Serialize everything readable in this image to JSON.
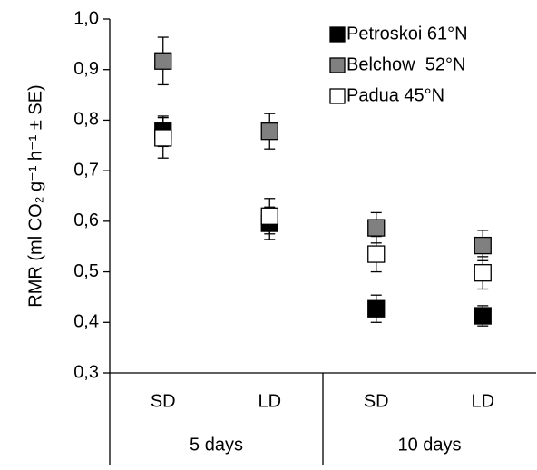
{
  "chart_data": {
    "type": "errorpoint",
    "ylabel": "RMR (ml CO₂ g⁻¹ h⁻¹ ± SE)",
    "categories": [
      "SD",
      "LD",
      "SD",
      "LD"
    ],
    "groups": [
      {
        "label": "5 days",
        "size": 2
      },
      {
        "label": "10 days",
        "size": 2
      }
    ],
    "series": [
      {
        "name": "Petroskoi 61°N",
        "color": "#000000",
        "values": [
          0.778,
          0.596,
          0.427,
          0.413
        ],
        "errors": [
          0.03,
          0.032,
          0.027,
          0.02
        ]
      },
      {
        "name": "Belchow  52°N",
        "color": "#808080",
        "values": [
          0.917,
          0.778,
          0.587,
          0.552
        ],
        "errors": [
          0.047,
          0.035,
          0.03,
          0.03
        ]
      },
      {
        "name": "Padua 45°N",
        "color": "#ffffff",
        "values": [
          0.765,
          0.61,
          0.535,
          0.498
        ],
        "errors": [
          0.04,
          0.035,
          0.035,
          0.032
        ]
      }
    ],
    "ylim": [
      0.3,
      1.0
    ],
    "yticks": [
      {
        "value": 0.3,
        "label": "0,3"
      },
      {
        "value": 0.4,
        "label": "0,4"
      },
      {
        "value": 0.5,
        "label": "0,5"
      },
      {
        "value": 0.6,
        "label": "0,6"
      },
      {
        "value": 0.7,
        "label": "0,7"
      },
      {
        "value": 0.8,
        "label": "0,8"
      },
      {
        "value": 0.9,
        "label": "0,9"
      },
      {
        "value": 1.0,
        "label": "1,0"
      }
    ],
    "legend": "top-right"
  }
}
